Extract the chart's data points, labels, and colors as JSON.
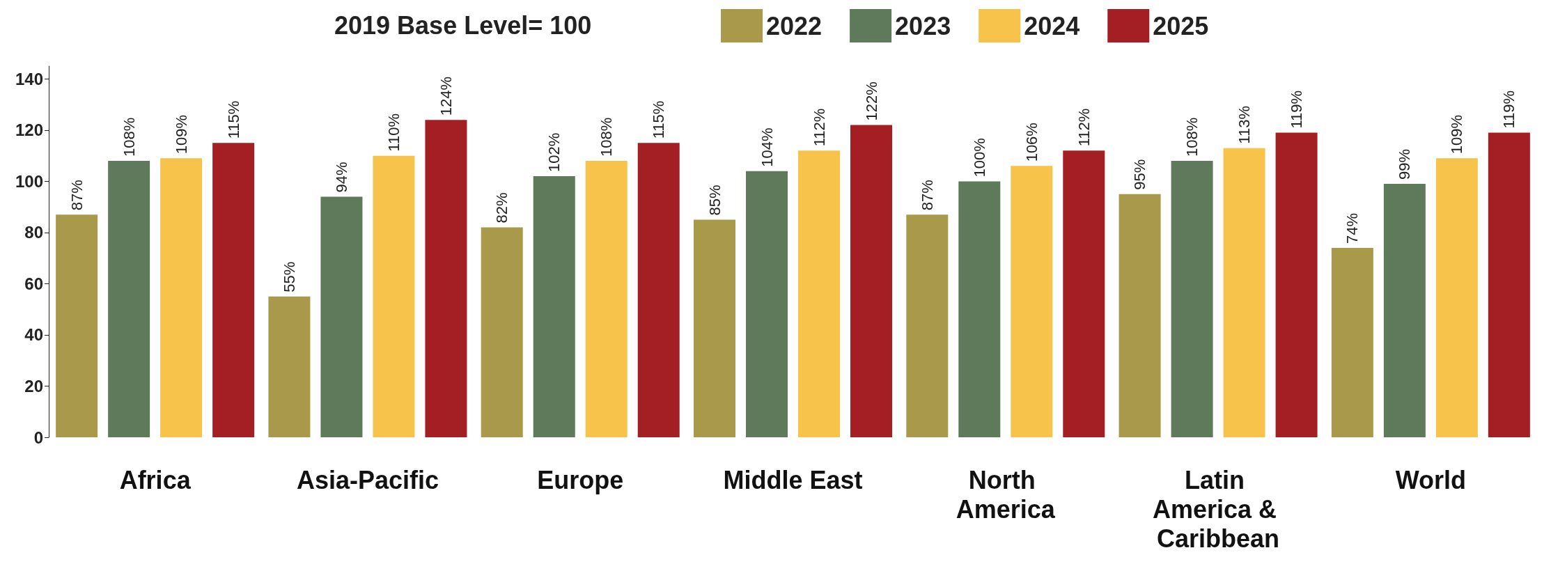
{
  "chart_data": {
    "type": "bar",
    "legend_title": "2019 Base Level= 100",
    "categories": [
      "Africa",
      "Asia-Pacific",
      "Europe",
      "Middle East",
      "North America",
      "Latin America & Caribbean",
      "World"
    ],
    "series": [
      {
        "name": "2022",
        "color": "#a89a4a",
        "values": [
          87,
          55,
          82,
          85,
          87,
          95,
          74
        ],
        "value_labels": [
          "87%",
          "55%",
          "82%",
          "85%",
          "87%",
          "95%",
          "74%"
        ]
      },
      {
        "name": "2023",
        "color": "#5f7a5a",
        "values": [
          108,
          94,
          102,
          104,
          100,
          108,
          99
        ],
        "value_labels": [
          "108%",
          "94%",
          "102%",
          "104%",
          "100%",
          "108%",
          "99%"
        ]
      },
      {
        "name": "2024",
        "color": "#f7c34a",
        "values": [
          109,
          110,
          108,
          112,
          106,
          113,
          109
        ],
        "value_labels": [
          "109%",
          "110%",
          "108%",
          "112%",
          "106%",
          "113%",
          "109%"
        ]
      },
      {
        "name": "2025",
        "color": "#a31f24",
        "values": [
          115,
          124,
          115,
          122,
          112,
          119,
          119
        ],
        "value_labels": [
          "115%",
          "124%",
          "115%",
          "122%",
          "112%",
          "119%",
          "119%"
        ]
      }
    ],
    "ylim": [
      0,
      145
    ],
    "yticks": [
      0,
      20,
      40,
      60,
      80,
      100,
      120,
      140
    ],
    "grid": false,
    "legend": "top"
  }
}
